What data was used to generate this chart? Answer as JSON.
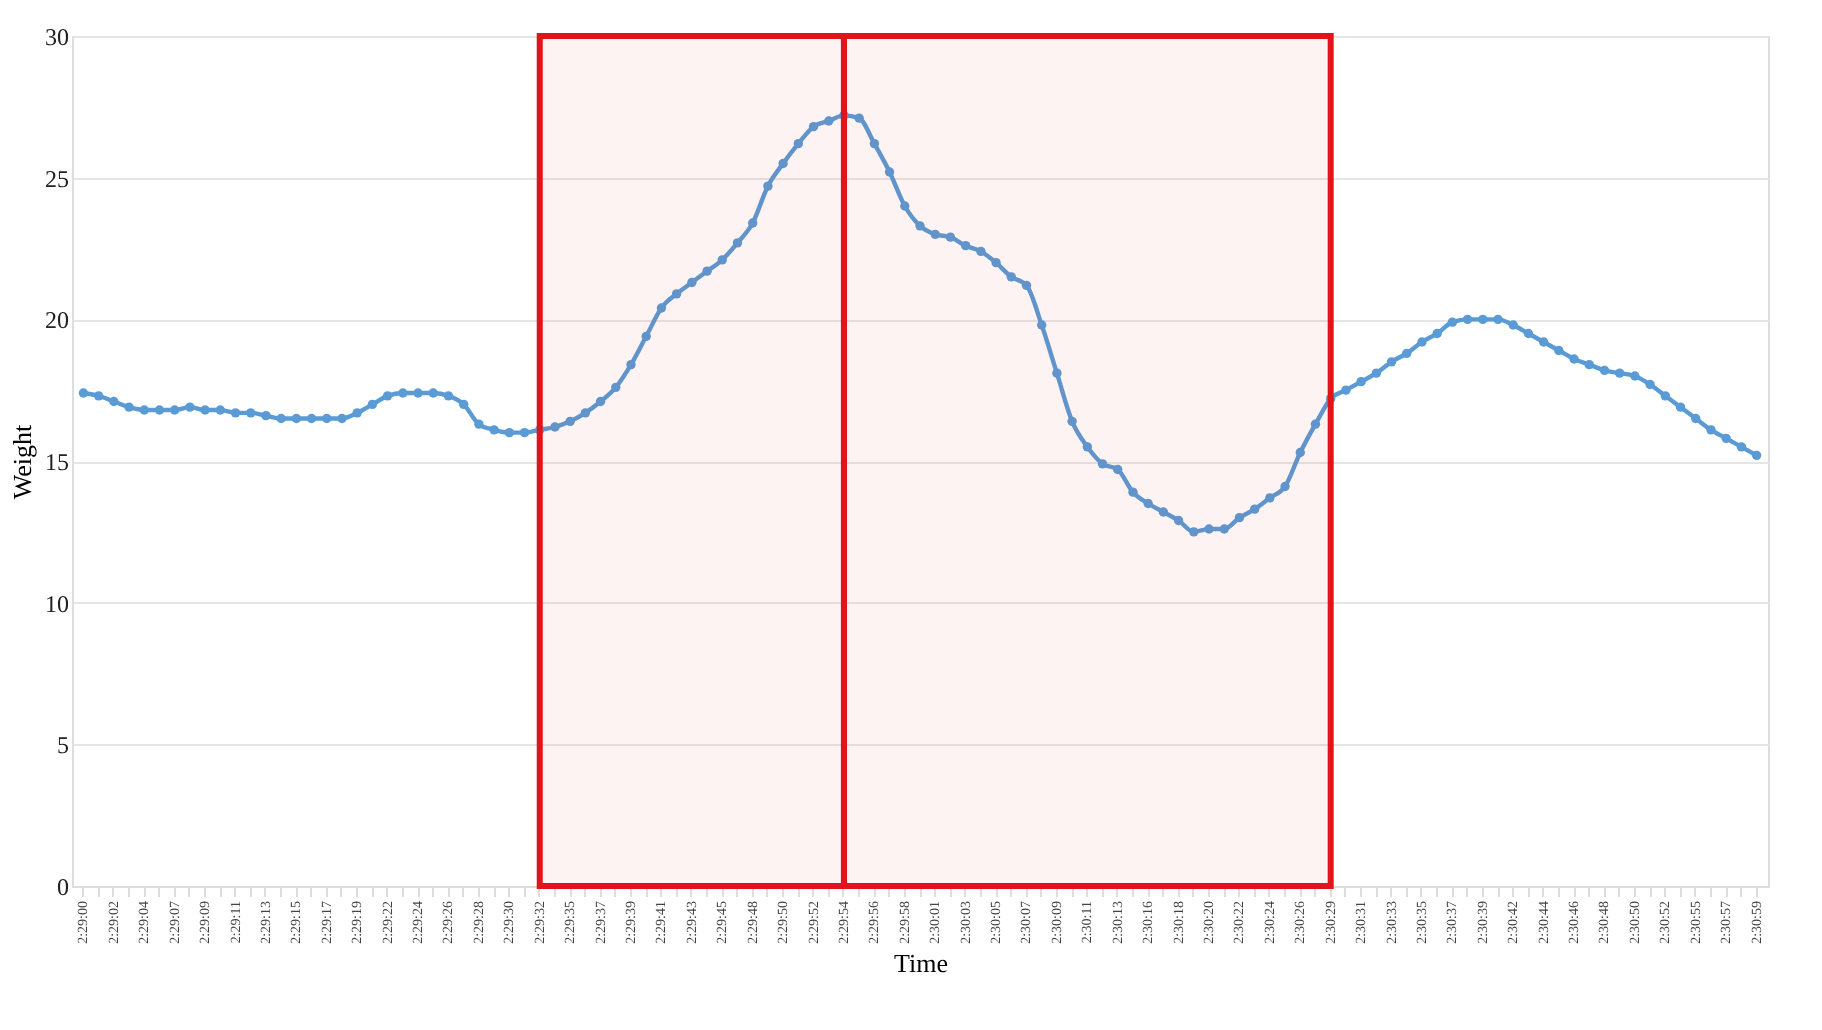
{
  "chart_data": {
    "type": "line",
    "xlabel": "Time",
    "ylabel": "Weight",
    "categories": [
      "2:29:00",
      null,
      "2:29:02",
      null,
      "2:29:04",
      null,
      "2:29:07",
      null,
      "2:29:09",
      null,
      "2:29:11",
      null,
      "2:29:13",
      null,
      "2:29:15",
      null,
      "2:29:17",
      null,
      "2:29:19",
      null,
      "2:29:22",
      null,
      "2:29:24",
      null,
      "2:29:26",
      null,
      "2:29:28",
      null,
      "2:29:30",
      null,
      "2:29:32",
      null,
      "2:29:35",
      null,
      "2:29:37",
      null,
      "2:29:39",
      null,
      "2:29:41",
      null,
      "2:29:43",
      null,
      "2:29:45",
      null,
      "2:29:48",
      null,
      "2:29:50",
      null,
      "2:29:52",
      null,
      "2:29:54",
      null,
      "2:29:56",
      null,
      "2:29:58",
      null,
      "2:30:01",
      null,
      "2:30:03",
      null,
      "2:30:05",
      null,
      "2:30:07",
      null,
      "2:30:09",
      null,
      "2:30:11",
      null,
      "2:30:13",
      null,
      "2:30:16",
      null,
      "2:30:18",
      null,
      "2:30:20",
      null,
      "2:30:22",
      null,
      "2:30:24",
      null,
      "2:30:26",
      null,
      "2:30:29",
      null,
      "2:30:31",
      null,
      "2:30:33",
      null,
      "2:30:35",
      null,
      "2:30:37",
      null,
      "2:30:39",
      null,
      "2:30:42",
      null,
      "2:30:44",
      null,
      "2:30:46",
      null,
      "2:30:48",
      null,
      "2:30:50",
      null,
      "2:30:52",
      null,
      "2:30:55",
      null,
      "2:30:57",
      null,
      "2:30:59"
    ],
    "series": [
      {
        "color": "#5b9bd5",
        "values": [
          17.4,
          17.3,
          17.1,
          16.9,
          16.8,
          16.8,
          16.8,
          16.9,
          16.8,
          16.8,
          16.7,
          16.7,
          16.6,
          16.5,
          16.5,
          16.5,
          16.5,
          16.5,
          16.7,
          17.0,
          17.3,
          17.4,
          17.4,
          17.4,
          17.3,
          17.0,
          16.3,
          16.1,
          16.0,
          16.0,
          16.1,
          16.2,
          16.4,
          16.7,
          17.1,
          17.6,
          18.4,
          19.4,
          20.4,
          20.9,
          21.3,
          21.7,
          22.1,
          22.7,
          23.4,
          24.7,
          25.5,
          26.2,
          26.8,
          27.0,
          27.2,
          27.1,
          26.2,
          25.2,
          24.0,
          23.3,
          23.0,
          22.9,
          22.6,
          22.4,
          22.0,
          21.5,
          21.2,
          19.8,
          18.1,
          16.4,
          15.5,
          14.9,
          14.7,
          13.9,
          13.5,
          13.2,
          12.9,
          12.5,
          12.6,
          12.6,
          13.0,
          13.3,
          13.7,
          14.1,
          15.3,
          16.3,
          17.2,
          17.5,
          17.8,
          18.1,
          18.5,
          18.8,
          19.2,
          19.5,
          19.9,
          20.0,
          20.0,
          20.0,
          19.8,
          19.5,
          19.2,
          18.9,
          18.6,
          18.4,
          18.2,
          18.1,
          18.0,
          17.7,
          17.3,
          16.9,
          16.5,
          16.1,
          15.8,
          15.5,
          15.2
        ]
      }
    ],
    "ylim": [
      0,
      30
    ],
    "yticks": [
      0,
      5,
      10,
      15,
      20,
      25,
      30
    ],
    "grid": "y",
    "marker": "circle",
    "line_style": "solid",
    "bands": [
      {
        "axis": "x",
        "from": "2:29:32",
        "to": "2:29:54",
        "color": "#e0141a"
      },
      {
        "axis": "x",
        "from": "2:29:54",
        "to": "2:30:29",
        "color": "#e0141a"
      }
    ]
  }
}
